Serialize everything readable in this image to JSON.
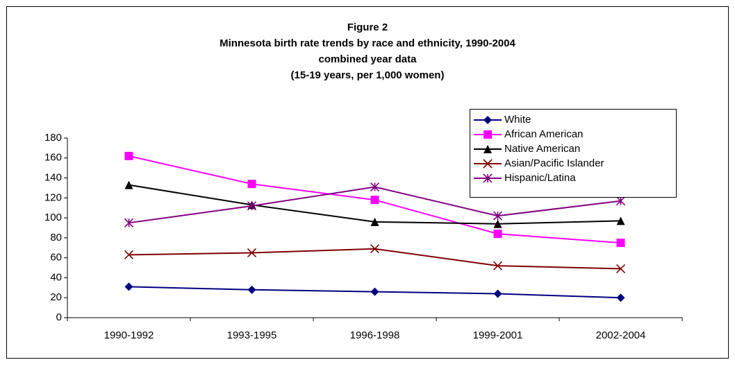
{
  "chart_data": {
    "type": "line",
    "title": [
      "Figure 2",
      "Minnesota birth rate trends by race and ethnicity, 1990-2004",
      "combined year data",
      "(15-19 years, per 1,000 women)"
    ],
    "categories": [
      "1990-1992",
      "1993-1995",
      "1996-1998",
      "1999-2001",
      "2002-2004"
    ],
    "series": [
      {
        "name": "White",
        "color": "#000080",
        "marker": "diamond",
        "values": [
          31,
          28,
          26,
          24,
          20
        ]
      },
      {
        "name": "African American",
        "color": "#ff00ff",
        "marker": "square",
        "values": [
          162,
          134,
          118,
          84,
          75
        ]
      },
      {
        "name": "Native American",
        "color": "#000000",
        "marker": "triangle",
        "values": [
          133,
          113,
          96,
          94,
          97
        ]
      },
      {
        "name": "Asian/Pacific Islander",
        "color": "#800000",
        "marker": "x",
        "values": [
          63,
          65,
          69,
          52,
          49
        ]
      },
      {
        "name": "Hispanic/Latina",
        "color": "#800080",
        "marker": "star",
        "values": [
          95,
          112,
          131,
          102,
          117
        ]
      }
    ],
    "ylim": [
      0,
      180
    ],
    "yticks": [
      0,
      20,
      40,
      60,
      80,
      100,
      120,
      140,
      160,
      180
    ],
    "legend": "upper right"
  }
}
